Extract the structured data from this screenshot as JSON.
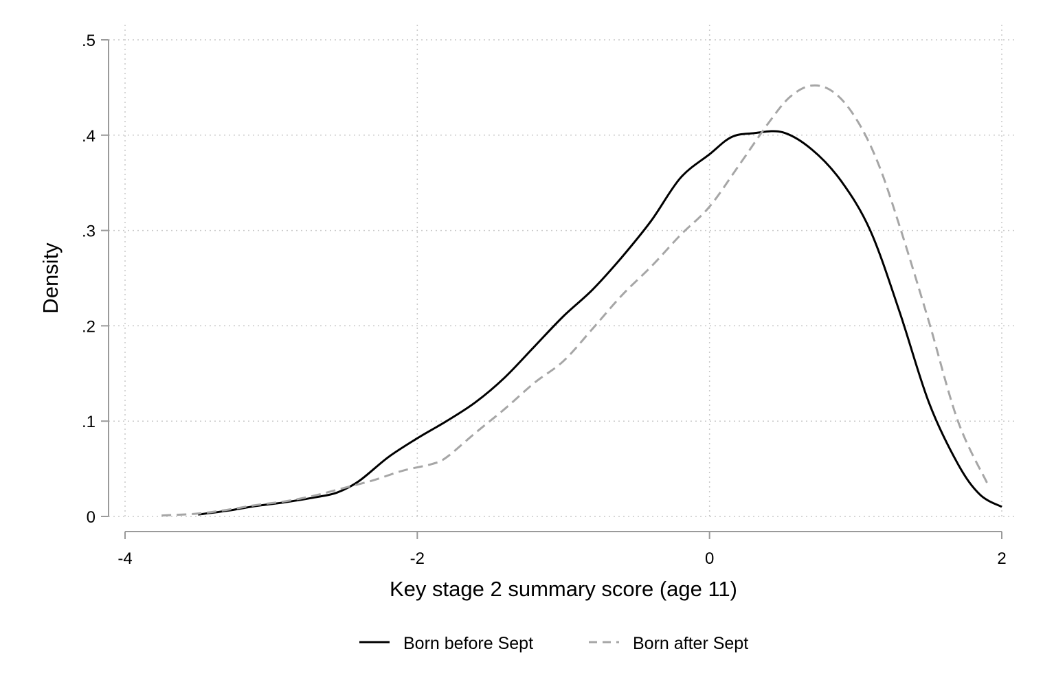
{
  "chart_data": {
    "type": "line",
    "title": "",
    "xlabel": "Key stage 2 summary score (age 11)",
    "ylabel": "Density",
    "xlim": [
      -4,
      2
    ],
    "ylim": [
      0,
      0.5
    ],
    "x_ticks": [
      -4,
      -2,
      0,
      2
    ],
    "x_tick_labels": [
      "-4",
      "-2",
      "0",
      "2"
    ],
    "y_ticks": [
      0,
      0.1,
      0.2,
      0.3,
      0.4,
      0.5
    ],
    "y_tick_labels": [
      "0",
      ".1",
      ".2",
      ".3",
      ".4",
      ".5"
    ],
    "grid": true,
    "legend_position": "bottom",
    "series": [
      {
        "name": "Born before Sept",
        "color": "#000000",
        "style": "solid",
        "x": [
          -3.5,
          -3.3,
          -3.1,
          -2.9,
          -2.7,
          -2.55,
          -2.4,
          -2.2,
          -2.0,
          -1.8,
          -1.6,
          -1.4,
          -1.2,
          -1.0,
          -0.8,
          -0.6,
          -0.4,
          -0.2,
          0.0,
          0.15,
          0.3,
          0.5,
          0.7,
          0.9,
          1.1,
          1.3,
          1.5,
          1.7,
          1.85,
          2.0
        ],
        "y": [
          0.002,
          0.006,
          0.011,
          0.015,
          0.02,
          0.025,
          0.037,
          0.062,
          0.082,
          0.1,
          0.12,
          0.146,
          0.178,
          0.21,
          0.238,
          0.272,
          0.31,
          0.355,
          0.38,
          0.398,
          0.402,
          0.403,
          0.385,
          0.352,
          0.3,
          0.215,
          0.12,
          0.055,
          0.023,
          0.01
        ]
      },
      {
        "name": "Born after Sept",
        "color": "#a6a6a6",
        "style": "dashed",
        "x": [
          -3.75,
          -3.5,
          -3.3,
          -3.1,
          -2.9,
          -2.7,
          -2.5,
          -2.3,
          -2.1,
          -1.9,
          -1.8,
          -1.6,
          -1.4,
          -1.2,
          -1.0,
          -0.8,
          -0.6,
          -0.4,
          -0.2,
          0.0,
          0.2,
          0.4,
          0.55,
          0.7,
          0.85,
          1.0,
          1.15,
          1.3,
          1.5,
          1.7,
          1.9
        ],
        "y": [
          0.001,
          0.003,
          0.007,
          0.012,
          0.016,
          0.022,
          0.03,
          0.038,
          0.048,
          0.055,
          0.062,
          0.088,
          0.113,
          0.14,
          0.163,
          0.197,
          0.232,
          0.262,
          0.295,
          0.325,
          0.368,
          0.412,
          0.44,
          0.452,
          0.445,
          0.418,
          0.372,
          0.305,
          0.205,
          0.1,
          0.035
        ]
      }
    ]
  }
}
